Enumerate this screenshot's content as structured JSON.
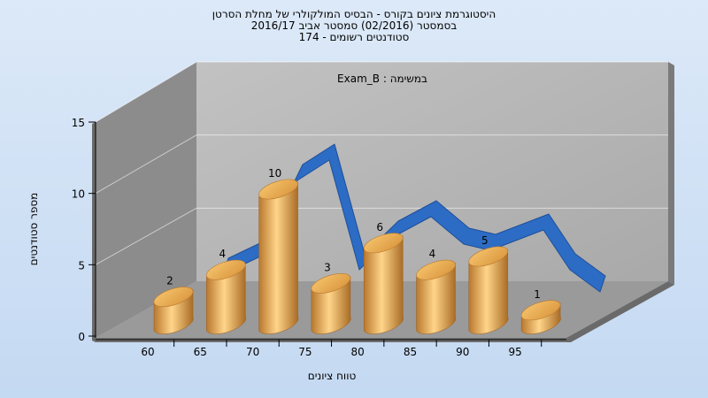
{
  "chart_data": {
    "type": "bar",
    "title_lines": [
      "היסטוגרמת ציונים בקורס - הבסיס המולקולרי של מחלת הסרטן",
      "בסמסטר (02/2016) סמסטר אביב 2016/17",
      "סטודנטים רשומים - 174"
    ],
    "subtitle": "במשימה : Exam_B",
    "xlabel": "טווח ציונים",
    "ylabel": "מספר סטודנטים",
    "categories": [
      "60",
      "65",
      "70",
      "75",
      "80",
      "85",
      "90",
      "95"
    ],
    "values": [
      2,
      4,
      10,
      3,
      6,
      4,
      5,
      1
    ],
    "yticks": [
      0,
      5,
      10,
      15
    ],
    "ylim": [
      0,
      15
    ],
    "bar_color": "#e8a850",
    "curve_color": "#2d6cc4",
    "grid": true
  }
}
